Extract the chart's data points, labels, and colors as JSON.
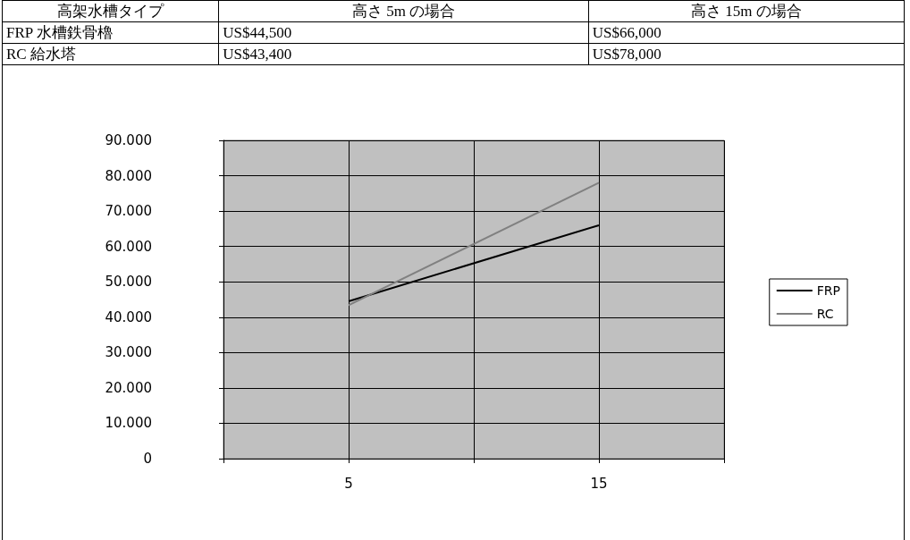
{
  "chart_data": {
    "type": "line",
    "annotations": [
      "高架水槽タイプ",
      "高さ 5m の場合",
      "高さ 15m の場合",
      "FRP 水槽鉄骨櫓",
      "US$44,500",
      "US$66,000",
      "RC 給水塔",
      "US$43,400",
      "US$78,000"
    ],
    "x": [
      5,
      15
    ],
    "series": [
      {
        "name": "FRP",
        "color": "#000000",
        "values": [
          44500,
          66000
        ]
      },
      {
        "name": "RC",
        "color": "#808080",
        "values": [
          43400,
          78000
        ]
      }
    ],
    "xlim": [
      0,
      20
    ],
    "xticks": [
      {
        "value": 0,
        "label": null
      },
      5,
      {
        "value": 10,
        "label": null
      },
      15,
      {
        "value": 20,
        "label": null
      }
    ],
    "ylim": [
      0,
      90000
    ],
    "yticks": [
      0,
      {
        "value": 10000,
        "label": "10.000"
      },
      {
        "value": 20000,
        "label": "20.000"
      },
      {
        "value": 30000,
        "label": "30.000"
      },
      {
        "value": 40000,
        "label": "40.000"
      },
      {
        "value": 50000,
        "label": "50.000"
      },
      {
        "value": 60000,
        "label": "60.000"
      },
      {
        "value": 70000,
        "label": "70.000"
      },
      {
        "value": 80000,
        "label": "80.000"
      },
      {
        "value": 90000,
        "label": "90.000"
      }
    ],
    "grid": true,
    "legend": "right",
    "marker": "none",
    "line_style": "solid"
  }
}
